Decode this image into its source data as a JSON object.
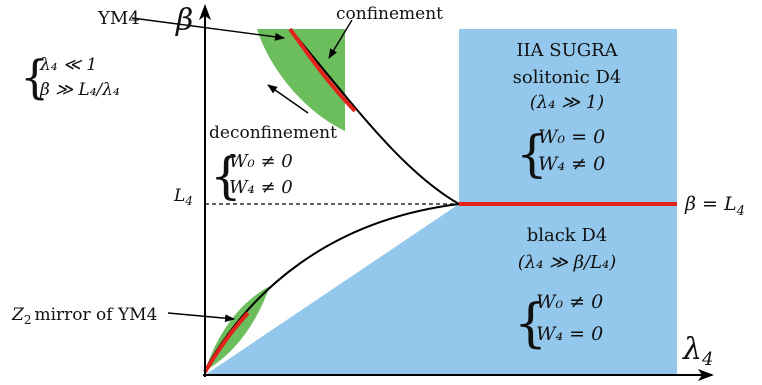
{
  "axes": {
    "y_label": "β",
    "x_label": "λ",
    "x_label_sub": "4"
  },
  "threshold": {
    "left_label": "L",
    "left_label_sub": "4",
    "right_label_lhs": "β = L",
    "right_label_sub": "4"
  },
  "ym4": {
    "title": "YM4",
    "cond1": "λ₄ ≪ 1",
    "cond2": "β ≫ L₄/λ₄"
  },
  "confinement_label": "confinement",
  "deconfinement": {
    "label": "deconfinement",
    "cond1": "W₀ ≠ 0",
    "cond2": "W₄ ≠ 0"
  },
  "sugra": {
    "title": "IIA SUGRA",
    "subtitle": "solitonic D4",
    "condition": "(λ₄ ≫ 1)",
    "cond1": "W₀ = 0",
    "cond2": "W₄ ≠ 0"
  },
  "black_d4": {
    "title": "black D4",
    "condition": "(λ₄ ≫ β/L₄)",
    "cond1": "W₀ ≠ 0",
    "cond2": "W₄ = 0"
  },
  "mirror": {
    "label_z": "Z",
    "label_sub": "2",
    "label_rest": "mirror of YM4"
  },
  "colors": {
    "blue_region": "#93c8ec",
    "green_region": "#6cbd5b",
    "red_line": "#e3221c",
    "curve": "#000000"
  }
}
